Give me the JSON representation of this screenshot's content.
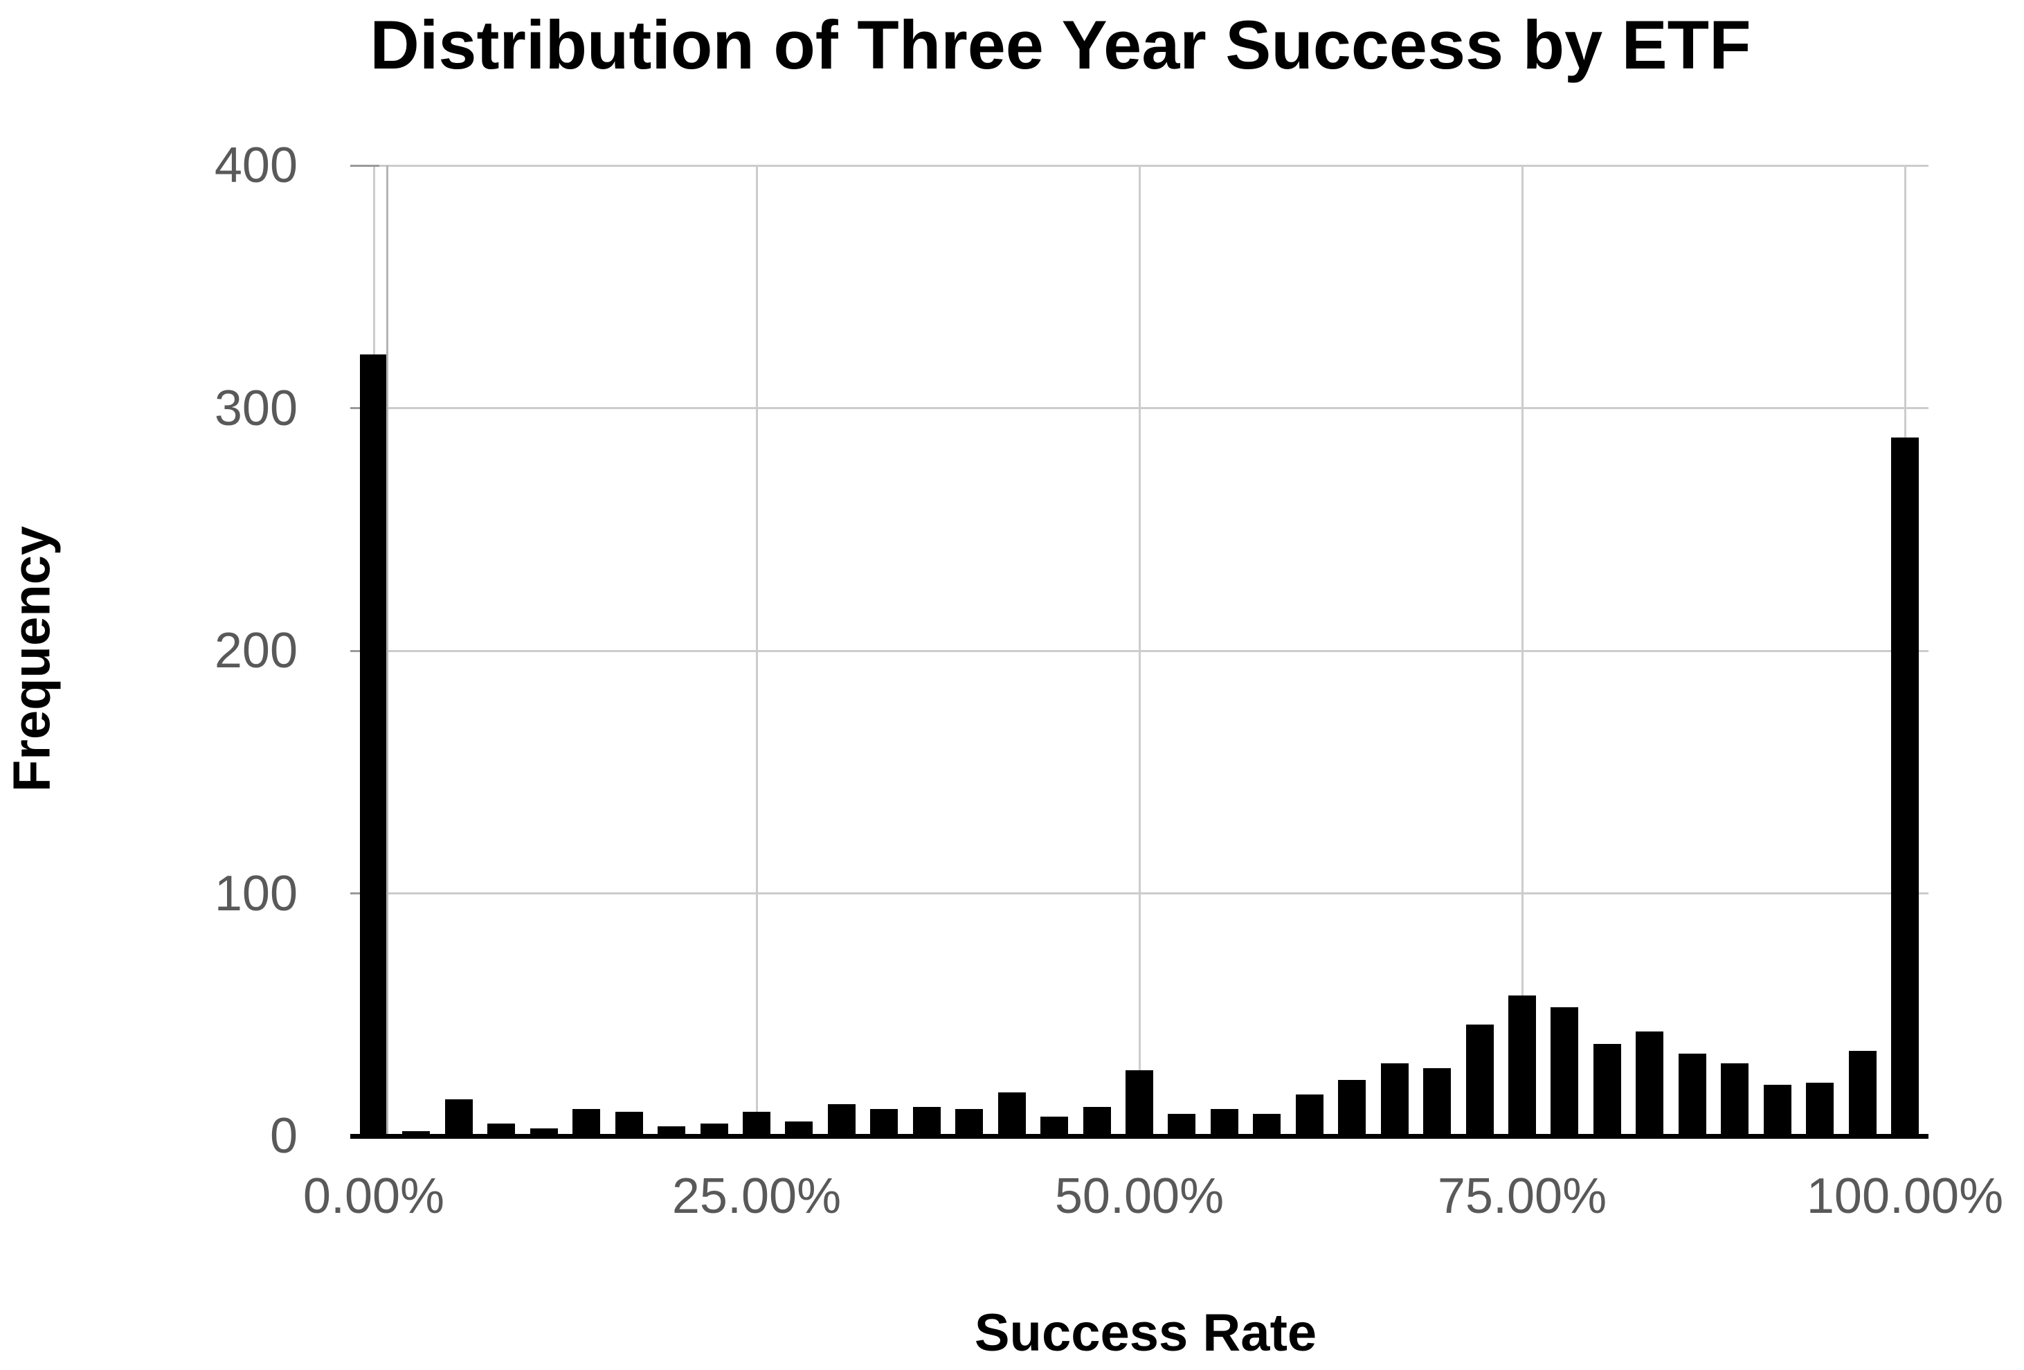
{
  "title": "Distribution of Three Year Success by ETF",
  "chart_data": {
    "type": "bar",
    "subtype": "histogram",
    "title": "Distribution of Three Year Success by ETF",
    "xlabel": "Success Rate",
    "ylabel": "Frequency",
    "ylim": [
      0,
      400
    ],
    "y_ticks": [
      0,
      100,
      200,
      300,
      400
    ],
    "y_tick_labels": [
      "0",
      "100",
      "200",
      "300",
      "400"
    ],
    "x_tick_pcts": [
      0,
      25,
      50,
      75,
      100
    ],
    "x_tick_labels": [
      "0.00%",
      "25.00%",
      "50.00%",
      "75.00%",
      "100.00%"
    ],
    "grid": true,
    "legend": "none",
    "bin_width_pct": 2.7778,
    "bin_centers_pct": [
      0,
      2.78,
      5.56,
      8.33,
      11.11,
      13.89,
      16.67,
      19.44,
      22.22,
      25,
      27.78,
      30.56,
      33.33,
      36.11,
      38.89,
      41.67,
      44.44,
      47.22,
      50,
      52.78,
      55.56,
      58.33,
      61.11,
      63.89,
      66.67,
      69.44,
      72.22,
      75,
      77.78,
      80.56,
      83.33,
      86.11,
      88.89,
      91.67,
      94.44,
      97.22,
      100
    ],
    "values": [
      322,
      2,
      15,
      5,
      3,
      11,
      10,
      4,
      5,
      10,
      6,
      13,
      11,
      12,
      11,
      18,
      8,
      12,
      27,
      9,
      11,
      9,
      17,
      23,
      30,
      28,
      46,
      58,
      53,
      38,
      43,
      34,
      30,
      21,
      22,
      35,
      288
    ]
  },
  "colors": {
    "background": "#ffffff",
    "bar": "#000000",
    "gridline": "#cccccc",
    "axis_line": "#b3b3b3",
    "baseline": "#000000",
    "tick_mark": "#999999",
    "tick_label": "#595959",
    "title": "#000000"
  }
}
